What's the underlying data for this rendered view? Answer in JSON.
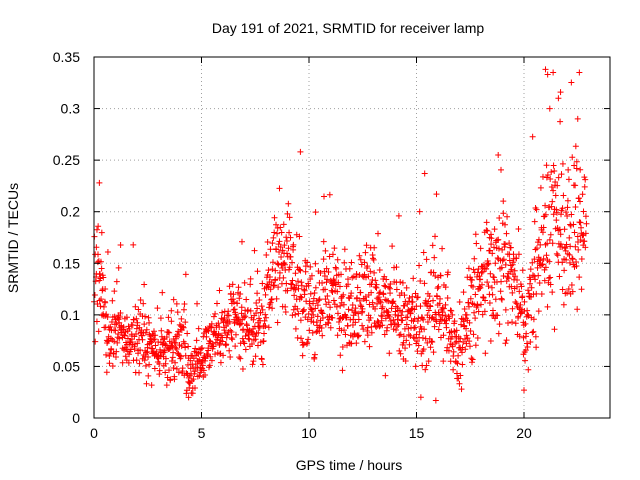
{
  "chart_data": {
    "type": "scatter",
    "title": "Day 191 of 2021, SRMTID for receiver lamp",
    "xlabel": "GPS time / hours",
    "ylabel": "SRMTID / TECUs",
    "xlim": [
      0,
      24
    ],
    "ylim": [
      0,
      0.35
    ],
    "xticks": [
      0,
      5,
      10,
      15,
      20
    ],
    "xtick_labels": [
      "0",
      "5",
      "10",
      "15",
      "20"
    ],
    "yticks": [
      0,
      0.05,
      0.1,
      0.15,
      0.2,
      0.25,
      0.3,
      0.35
    ],
    "ytick_labels": [
      "0",
      "0.05",
      "0.1",
      "0.15",
      "0.2",
      "0.25",
      "0.3",
      "0.35"
    ],
    "grid": true,
    "marker": "+",
    "series_color": "#ff0000",
    "x_range_data": [
      0,
      22.9
    ],
    "trend": [
      {
        "x": 0.0,
        "y": 0.12,
        "spread": 0.06
      },
      {
        "x": 0.3,
        "y": 0.15,
        "spread": 0.07
      },
      {
        "x": 0.6,
        "y": 0.08,
        "spread": 0.04
      },
      {
        "x": 1.0,
        "y": 0.09,
        "spread": 0.05
      },
      {
        "x": 1.5,
        "y": 0.07,
        "spread": 0.03
      },
      {
        "x": 2.0,
        "y": 0.08,
        "spread": 0.04
      },
      {
        "x": 3.0,
        "y": 0.065,
        "spread": 0.03
      },
      {
        "x": 4.0,
        "y": 0.07,
        "spread": 0.04
      },
      {
        "x": 4.5,
        "y": 0.05,
        "spread": 0.03
      },
      {
        "x": 5.0,
        "y": 0.055,
        "spread": 0.03
      },
      {
        "x": 5.5,
        "y": 0.08,
        "spread": 0.04
      },
      {
        "x": 6.5,
        "y": 0.09,
        "spread": 0.04
      },
      {
        "x": 7.5,
        "y": 0.08,
        "spread": 0.04
      },
      {
        "x": 8.0,
        "y": 0.11,
        "spread": 0.06
      },
      {
        "x": 8.5,
        "y": 0.15,
        "spread": 0.05
      },
      {
        "x": 9.0,
        "y": 0.16,
        "spread": 0.06
      },
      {
        "x": 9.5,
        "y": 0.12,
        "spread": 0.06
      },
      {
        "x": 10.0,
        "y": 0.1,
        "spread": 0.05
      },
      {
        "x": 11.0,
        "y": 0.12,
        "spread": 0.05
      },
      {
        "x": 12.0,
        "y": 0.11,
        "spread": 0.05
      },
      {
        "x": 12.8,
        "y": 0.13,
        "spread": 0.06
      },
      {
        "x": 13.5,
        "y": 0.1,
        "spread": 0.05
      },
      {
        "x": 14.5,
        "y": 0.09,
        "spread": 0.04
      },
      {
        "x": 15.5,
        "y": 0.1,
        "spread": 0.06
      },
      {
        "x": 16.0,
        "y": 0.12,
        "spread": 0.06
      },
      {
        "x": 16.5,
        "y": 0.08,
        "spread": 0.04
      },
      {
        "x": 17.0,
        "y": 0.07,
        "spread": 0.04
      },
      {
        "x": 17.5,
        "y": 0.1,
        "spread": 0.05
      },
      {
        "x": 18.5,
        "y": 0.14,
        "spread": 0.07
      },
      {
        "x": 19.0,
        "y": 0.16,
        "spread": 0.07
      },
      {
        "x": 19.5,
        "y": 0.13,
        "spread": 0.06
      },
      {
        "x": 20.0,
        "y": 0.09,
        "spread": 0.05
      },
      {
        "x": 20.5,
        "y": 0.12,
        "spread": 0.07
      },
      {
        "x": 21.0,
        "y": 0.18,
        "spread": 0.08
      },
      {
        "x": 21.5,
        "y": 0.2,
        "spread": 0.09
      },
      {
        "x": 22.0,
        "y": 0.17,
        "spread": 0.08
      },
      {
        "x": 22.5,
        "y": 0.18,
        "spread": 0.08
      },
      {
        "x": 22.9,
        "y": 0.19,
        "spread": 0.06
      }
    ],
    "outliers": [
      {
        "x": 21.0,
        "y": 0.338
      },
      {
        "x": 21.1,
        "y": 0.333
      },
      {
        "x": 21.6,
        "y": 0.31
      },
      {
        "x": 21.7,
        "y": 0.316
      },
      {
        "x": 21.2,
        "y": 0.3
      },
      {
        "x": 22.5,
        "y": 0.29
      },
      {
        "x": 9.6,
        "y": 0.258
      },
      {
        "x": 18.8,
        "y": 0.255
      },
      {
        "x": 0.25,
        "y": 0.228
      },
      {
        "x": 4.4,
        "y": 0.02
      },
      {
        "x": 15.9,
        "y": 0.017
      },
      {
        "x": 20.0,
        "y": 0.027
      }
    ]
  }
}
